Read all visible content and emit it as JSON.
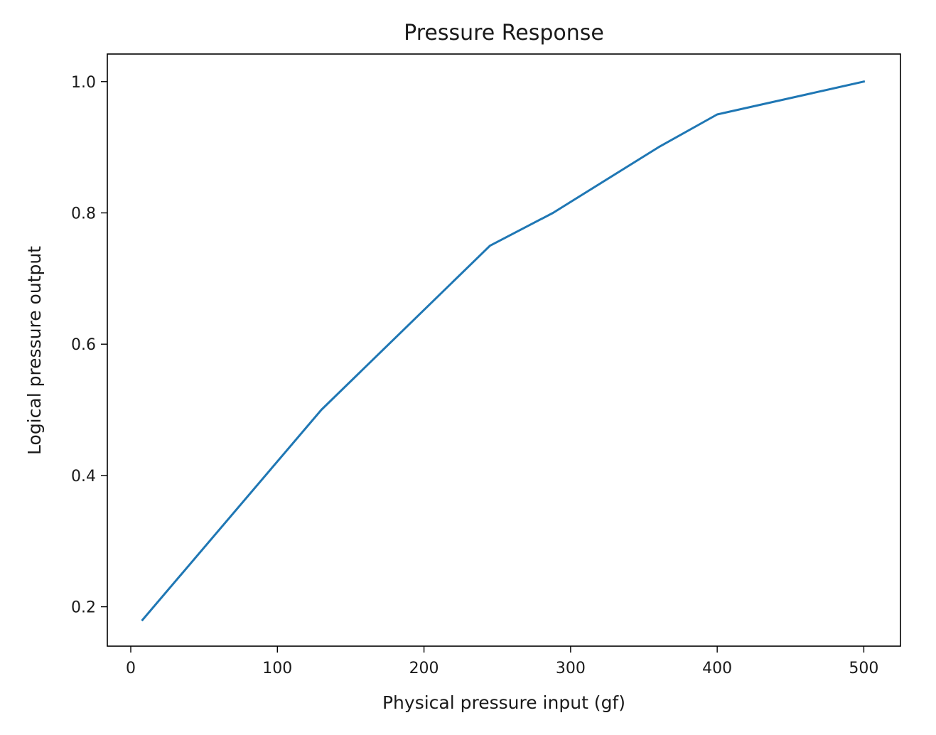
{
  "chart_data": {
    "type": "line",
    "title": "Pressure Response",
    "xlabel": "Physical pressure input (gf)",
    "ylabel": "Logical pressure output",
    "xlim": [
      -16,
      525
    ],
    "ylim": [
      0.14,
      1.042
    ],
    "xticks": [
      0,
      100,
      200,
      300,
      400,
      500
    ],
    "xtick_labels": [
      "0",
      "100",
      "200",
      "300",
      "400",
      "500"
    ],
    "yticks": [
      0.2,
      0.4,
      0.6,
      0.8,
      1.0
    ],
    "ytick_labels": [
      "0.2",
      "0.4",
      "0.6",
      "0.8",
      "1.0"
    ],
    "grid": false,
    "series": [
      {
        "color": "#1f77b4",
        "x": [
          8,
          130,
          245,
          288,
          360,
          400,
          500
        ],
        "y": [
          0.18,
          0.5,
          0.75,
          0.8,
          0.9,
          0.95,
          1.0
        ]
      }
    ]
  }
}
